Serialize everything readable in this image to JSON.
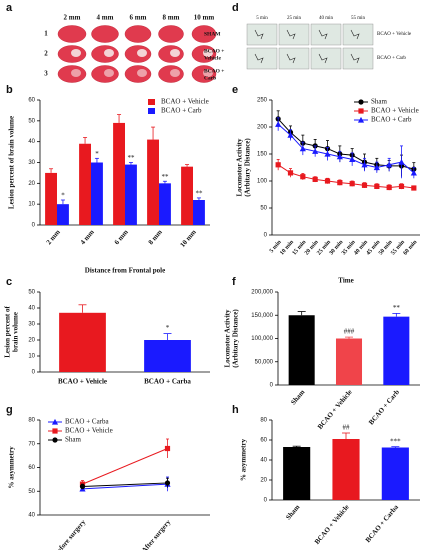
{
  "panel_labels": [
    "a",
    "b",
    "c",
    "d",
    "e",
    "f",
    "g",
    "h"
  ],
  "panel_a": {
    "columns": [
      "2 mm",
      "4 mm",
      "6 mm",
      "8 mm",
      "10 mm"
    ],
    "rows": [
      "1",
      "2",
      "3"
    ],
    "row_labels": [
      [
        "SHAM"
      ],
      [
        "BCAO +",
        "Vehicle"
      ],
      [
        "BCAO +",
        "Carb"
      ]
    ]
  },
  "panel_d": {
    "times": [
      "5 min",
      "25 min",
      "40 min",
      "55 min"
    ],
    "row_labels": [
      "BCAO + Vehicle",
      "BCAO + Carb"
    ]
  },
  "chart_data": [
    {
      "type": "bar",
      "categories": [
        "2 mm",
        "4 mm",
        "6 mm",
        "8 mm",
        "10 mm"
      ],
      "series": [
        {
          "name": "BCAO + Vehicle",
          "color": "#e8191f",
          "values": [
            25,
            39,
            49,
            41,
            28
          ],
          "errors": [
            2,
            3,
            4,
            6,
            1
          ]
        },
        {
          "name": "BCAO + Carb",
          "color": "#1a1aff",
          "values": [
            10,
            30,
            29,
            20,
            12
          ],
          "errors": [
            2,
            2,
            1,
            1,
            1
          ],
          "annotations": [
            "*",
            "*",
            "**",
            "**",
            "**"
          ]
        }
      ],
      "ylim": [
        0,
        60
      ],
      "yticks": [
        0,
        10,
        20,
        30,
        40,
        50,
        60
      ],
      "ylabel": [
        "Lesion percent of brain volume"
      ],
      "xlabel": "Distance from Frontal pole",
      "legend": "upper right"
    },
    {
      "type": "bar",
      "categories": [
        "BCAO + Vehicle",
        "BCAO + Carba"
      ],
      "values": [
        37,
        20
      ],
      "errors": [
        5,
        4
      ],
      "colors": [
        "#e8191f",
        "#1a1aff"
      ],
      "annotations": [
        null,
        "*"
      ],
      "ylim": [
        0,
        50
      ],
      "yticks": [
        0,
        10,
        20,
        30,
        40,
        50
      ],
      "ylabel": [
        "Lesion percent of",
        "brain volume"
      ]
    },
    {
      "type": "line",
      "categories": [
        "5 min",
        "10 min",
        "15 min",
        "20 min",
        "25 min",
        "30 min",
        "35 min",
        "40 min",
        "45 min",
        "50 min",
        "55 min",
        "60 min"
      ],
      "series": [
        {
          "name": "Sham",
          "color": "#000000",
          "marker": "circle",
          "values": [
            215,
            190,
            170,
            165,
            160,
            150,
            148,
            135,
            130,
            128,
            128,
            122
          ],
          "errors": [
            15,
            12,
            15,
            12,
            15,
            15,
            12,
            15,
            12,
            10,
            20,
            12
          ]
        },
        {
          "name": "BCAO + Vehicle",
          "color": "#e8191f",
          "marker": "square",
          "values": [
            130,
            115,
            108,
            103,
            100,
            97,
            95,
            92,
            90,
            88,
            90,
            87
          ],
          "errors": [
            10,
            8,
            6,
            5,
            5,
            5,
            5,
            5,
            5,
            5,
            5,
            4
          ]
        },
        {
          "name": "BCAO + Carb",
          "color": "#1a1aff",
          "marker": "triangle",
          "values": [
            205,
            185,
            160,
            155,
            150,
            145,
            140,
            130,
            125,
            130,
            135,
            115
          ],
          "errors": [
            12,
            10,
            12,
            10,
            12,
            10,
            12,
            12,
            10,
            12,
            30,
            10
          ]
        }
      ],
      "ylim": [
        0,
        250
      ],
      "yticks": [
        0,
        50,
        100,
        150,
        200,
        250
      ],
      "ylabel": [
        "Locomotor Activity",
        "(Arbitary Distance)"
      ],
      "xlabel": "Time",
      "legend": "upper right"
    },
    {
      "type": "bar",
      "categories": [
        "Sham",
        "BCAO + Vehicle",
        "BCAO + Carb"
      ],
      "values": [
        150000,
        100000,
        147000
      ],
      "errors": [
        8000,
        3000,
        7000
      ],
      "colors": [
        "#000000",
        "#f0444a",
        "#1a1aff"
      ],
      "annotations": [
        null,
        "###",
        "**"
      ],
      "ylim": [
        0,
        200000
      ],
      "yticks": [
        0,
        {
          "value": 50000,
          "label": "50,000"
        },
        {
          "value": 100000,
          "label": "100,000"
        },
        {
          "value": 150000,
          "label": "150,000"
        },
        {
          "value": 200000,
          "label": "200,000"
        }
      ],
      "ylabel": [
        "Locomotor Activity",
        "(Arbitary Distance)"
      ]
    },
    {
      "type": "line",
      "categories": [
        "Before surgery",
        "After surgery"
      ],
      "series": [
        {
          "name": "BCAO + Carba",
          "color": "#1a1aff",
          "marker": "triangle",
          "values": [
            51,
            53
          ],
          "errors": [
            1,
            3
          ]
        },
        {
          "name": "BCAO + Vehicle",
          "color": "#e8191f",
          "marker": "square",
          "values": [
            53,
            68
          ],
          "errors": [
            1.5,
            4
          ]
        },
        {
          "name": "Sham",
          "color": "#000000",
          "marker": "circle",
          "values": [
            52,
            53.5
          ],
          "errors": [
            1,
            2
          ]
        }
      ],
      "ylim": [
        40,
        80
      ],
      "yticks": [
        40,
        50,
        60,
        70,
        80
      ],
      "ylabel": [
        "% asymmetry"
      ],
      "legend": "upper left"
    },
    {
      "type": "bar",
      "categories": [
        "Sham",
        "BCAO + Vehicle",
        "BCAO + Carba"
      ],
      "values": [
        53,
        61,
        52.5
      ],
      "errors": [
        0.8,
        6,
        0.8
      ],
      "colors": [
        "#000000",
        "#e8191f",
        "#1a1aff"
      ],
      "annotations": [
        null,
        "##",
        "***"
      ],
      "ylim": [
        0,
        80
      ],
      "yticks": [
        0,
        20,
        40,
        60,
        80
      ],
      "ylabel": [
        "% asymmetry"
      ]
    }
  ]
}
